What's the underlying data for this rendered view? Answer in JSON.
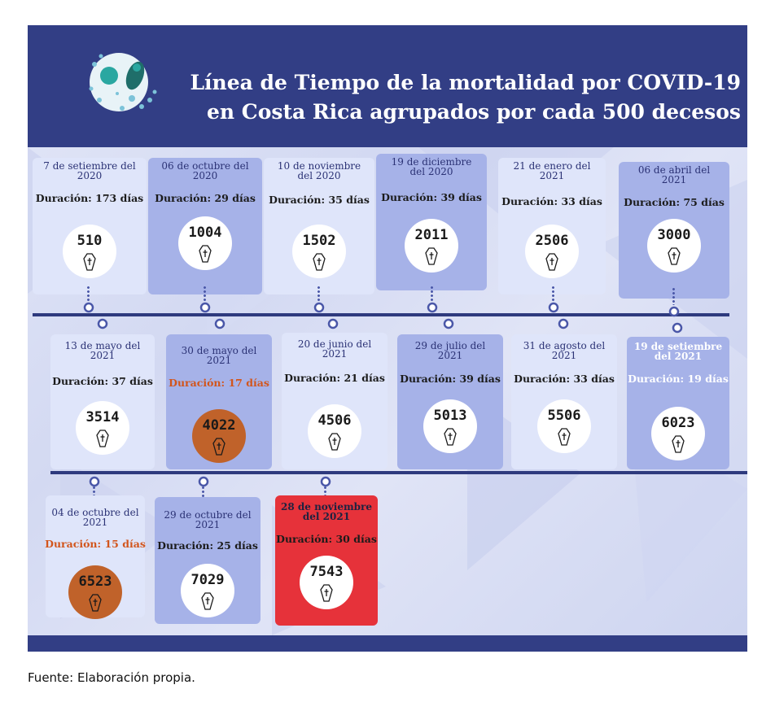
{
  "title_line1": "Línea de Tiempo de la mortalidad por COVID-19",
  "title_line2": "en Costa Rica agrupados por cada 500 decesos",
  "source": "Fuente: Elaboración propia.",
  "colors": {
    "header": "#323e85",
    "card_light": "#dfe5fa",
    "card_mid": "#a6b2e8",
    "highlight_orange": "#c0622a",
    "highlight_red": "#e6323a",
    "line": "#2e3a7e"
  },
  "icons": {
    "logo": "coronavirus-icon",
    "marker": "coffin-cross-icon"
  },
  "milestones": [
    {
      "date_line1": "7 de setiembre del",
      "date_line2": "2020",
      "duration": "Duración: 173 días",
      "deaths": "510"
    },
    {
      "date_line1": "06 de octubre del",
      "date_line2": "2020",
      "duration": "Duración: 29 días",
      "deaths": "1004"
    },
    {
      "date_line1": "10 de noviembre",
      "date_line2": "del 2020",
      "duration": "Duración: 35 días",
      "deaths": "1502"
    },
    {
      "date_line1": "19 de diciembre",
      "date_line2": "del 2020",
      "duration": "Duración: 39 días",
      "deaths": "2011"
    },
    {
      "date_line1": "21 de enero del",
      "date_line2": "2021",
      "duration": "Duración: 33 días",
      "deaths": "2506"
    },
    {
      "date_line1": "06 de abril del",
      "date_line2": "2021",
      "duration": "Duración: 75 días",
      "deaths": "3000"
    },
    {
      "date_line1": "13 de mayo del",
      "date_line2": "2021",
      "duration": "Duración: 37 días",
      "deaths": "3514"
    },
    {
      "date_line1": "30 de mayo del",
      "date_line2": "2021",
      "duration": "Duración: 17 días",
      "deaths": "4022"
    },
    {
      "date_line1": "20 de junio del",
      "date_line2": "2021",
      "duration": "Duración: 21 días",
      "deaths": "4506"
    },
    {
      "date_line1": "29 de julio del",
      "date_line2": "2021",
      "duration": "Duración: 39 días",
      "deaths": "5013"
    },
    {
      "date_line1": "31 de agosto del",
      "date_line2": "2021",
      "duration": "Duración: 33 días",
      "deaths": "5506"
    },
    {
      "date_line1": "19 de setiembre",
      "date_line2": "del 2021",
      "duration": "Duración: 19 días",
      "deaths": "6023"
    },
    {
      "date_line1": "04 de octubre del",
      "date_line2": "2021",
      "duration": "Duración: 15  días",
      "deaths": "6523"
    },
    {
      "date_line1": "29 de octubre del",
      "date_line2": "2021",
      "duration": "Duración: 25 días",
      "deaths": "7029"
    },
    {
      "date_line1": "28 de noviembre",
      "date_line2": "del 2021",
      "duration": "Duración: 30 días",
      "deaths": "7543"
    }
  ]
}
